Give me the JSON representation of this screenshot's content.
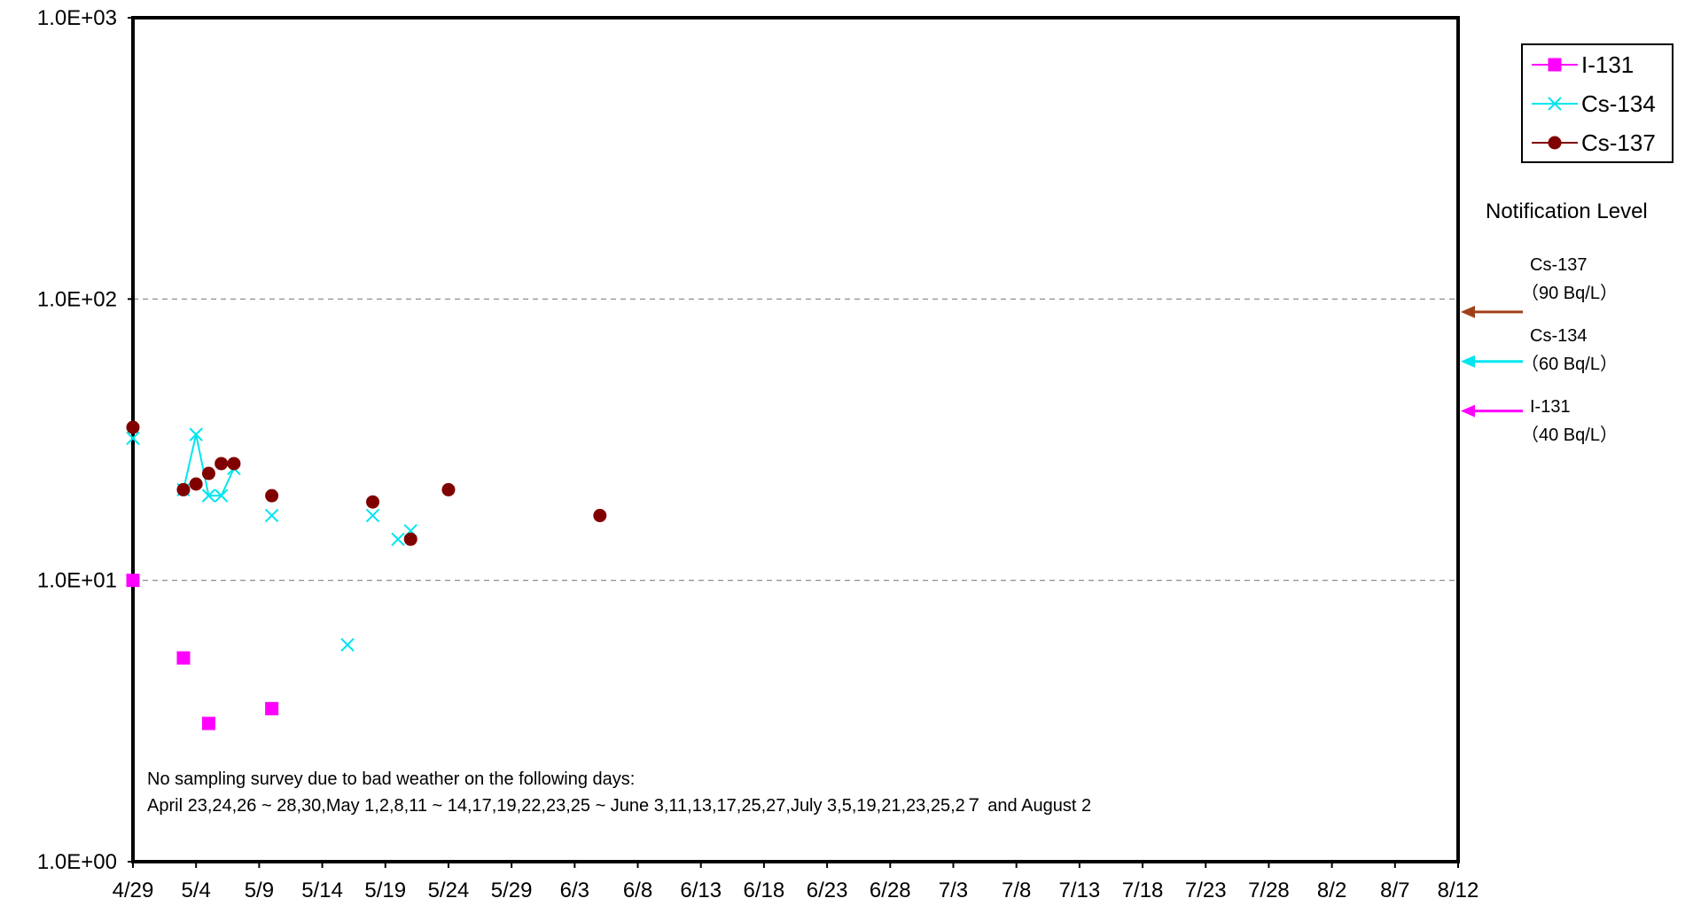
{
  "chart_data": {
    "type": "line",
    "y_scale": "log",
    "ylim": [
      1,
      1000
    ],
    "y_ticks": [
      {
        "value": 1,
        "label": "1.0E+00"
      },
      {
        "value": 10,
        "label": "1.0E+01"
      },
      {
        "value": 100,
        "label": "1.0E+02"
      },
      {
        "value": 1000,
        "label": "1.0E+03"
      }
    ],
    "x_ticks": [
      "4/29",
      "5/4",
      "5/9",
      "5/14",
      "5/19",
      "5/24",
      "5/29",
      "6/3",
      "6/8",
      "6/13",
      "6/18",
      "6/23",
      "6/28",
      "7/3",
      "7/8",
      "7/13",
      "7/18",
      "7/23",
      "7/28",
      "8/2",
      "8/7",
      "8/12"
    ],
    "x_range_days": [
      0,
      105
    ],
    "x_tick_step_days": 5,
    "gridlines": [
      10,
      100
    ],
    "legend_position": "top-right",
    "series": [
      {
        "name": "I-131",
        "color": "#ff00ff",
        "marker": "square",
        "connect": false,
        "points": [
          {
            "date": "4/29",
            "x": 0,
            "y": 10
          },
          {
            "date": "5/3",
            "x": 4,
            "y": 5.3
          },
          {
            "date": "5/5",
            "x": 6,
            "y": 3.1
          },
          {
            "date": "5/10",
            "x": 11,
            "y": 3.5
          }
        ]
      },
      {
        "name": "Cs-134",
        "color": "#00e5ee",
        "marker": "x",
        "connect": true,
        "segments": [
          [
            {
              "date": "5/3",
              "x": 4,
              "y": 21
            },
            {
              "date": "5/4",
              "x": 5,
              "y": 33
            },
            {
              "date": "5/5",
              "x": 6,
              "y": 20
            },
            {
              "date": "5/6",
              "x": 7,
              "y": 20
            },
            {
              "date": "5/7",
              "x": 8,
              "y": 25
            }
          ]
        ],
        "points": [
          {
            "date": "4/29",
            "x": 0,
            "y": 32
          },
          {
            "date": "5/10",
            "x": 11,
            "y": 17
          },
          {
            "date": "5/16",
            "x": 17,
            "y": 5.9
          },
          {
            "date": "5/18",
            "x": 19,
            "y": 17
          },
          {
            "date": "5/20",
            "x": 21,
            "y": 14
          },
          {
            "date": "5/21",
            "x": 22,
            "y": 15
          }
        ]
      },
      {
        "name": "Cs-137",
        "color": "#800000",
        "marker": "circle",
        "connect": false,
        "points": [
          {
            "date": "4/29",
            "x": 0,
            "y": 35
          },
          {
            "date": "5/3",
            "x": 4,
            "y": 21
          },
          {
            "date": "5/4",
            "x": 5,
            "y": 22
          },
          {
            "date": "5/5",
            "x": 6,
            "y": 24
          },
          {
            "date": "5/6",
            "x": 7,
            "y": 26
          },
          {
            "date": "5/7",
            "x": 8,
            "y": 26
          },
          {
            "date": "5/10",
            "x": 11,
            "y": 20
          },
          {
            "date": "5/18",
            "x": 19,
            "y": 19
          },
          {
            "date": "5/21",
            "x": 22,
            "y": 14
          },
          {
            "date": "5/24",
            "x": 25,
            "y": 21
          },
          {
            "date": "6/5",
            "x": 37,
            "y": 17
          }
        ]
      }
    ],
    "notification": {
      "title": "Notification Level",
      "levels": [
        {
          "name": "Cs-137",
          "value_label": "（90  Bq/L）",
          "value": 90,
          "color": "#a0401a"
        },
        {
          "name": "Cs-134",
          "value_label": "（60  Bq/L）",
          "value": 60,
          "color": "#00e5ee"
        },
        {
          "name": "I-131",
          "value_label": "（40  Bq/L）",
          "value": 40,
          "color": "#ff00ff"
        }
      ]
    },
    "note_lines": [
      "No sampling survey due to bad weather on the following days:",
      "April 23,24,26 ~ 28,30,May 1,2,8,11 ~ 14,17,19,22,23,25 ~ June 3,11,13,17,25,27,July 3,5,19,21,23,25,2７ and August 2"
    ]
  }
}
